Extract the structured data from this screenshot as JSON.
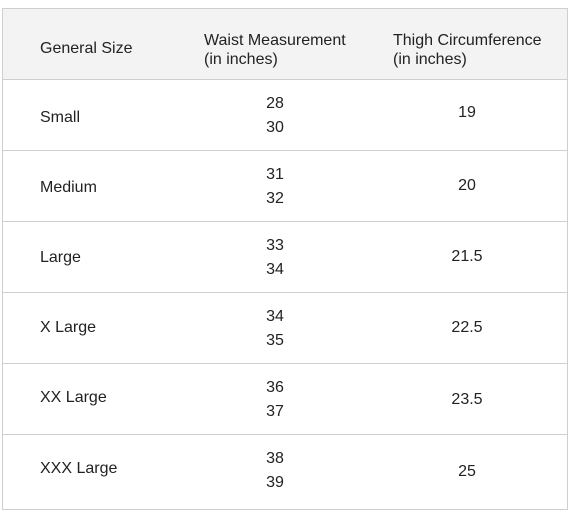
{
  "table": {
    "headers": {
      "size": "General Size",
      "waist": "Waist Measurement",
      "waist_sub": "(in inches)",
      "thigh": "Thigh Circumference",
      "thigh_sub": "(in inches)"
    },
    "rows": [
      {
        "size": "Small",
        "waist": [
          "28",
          "30"
        ],
        "thigh": "19"
      },
      {
        "size": "Medium",
        "waist": [
          "31",
          "32"
        ],
        "thigh": "20"
      },
      {
        "size": "Large",
        "waist": [
          "33",
          "34"
        ],
        "thigh": "21.5"
      },
      {
        "size": "X Large",
        "waist": [
          "34",
          "35"
        ],
        "thigh": "22.5"
      },
      {
        "size": "XX Large",
        "waist": [
          "36",
          "37"
        ],
        "thigh": "23.5"
      },
      {
        "size": "XXX Large",
        "waist": [
          "38",
          "39"
        ],
        "thigh": "25"
      }
    ]
  }
}
